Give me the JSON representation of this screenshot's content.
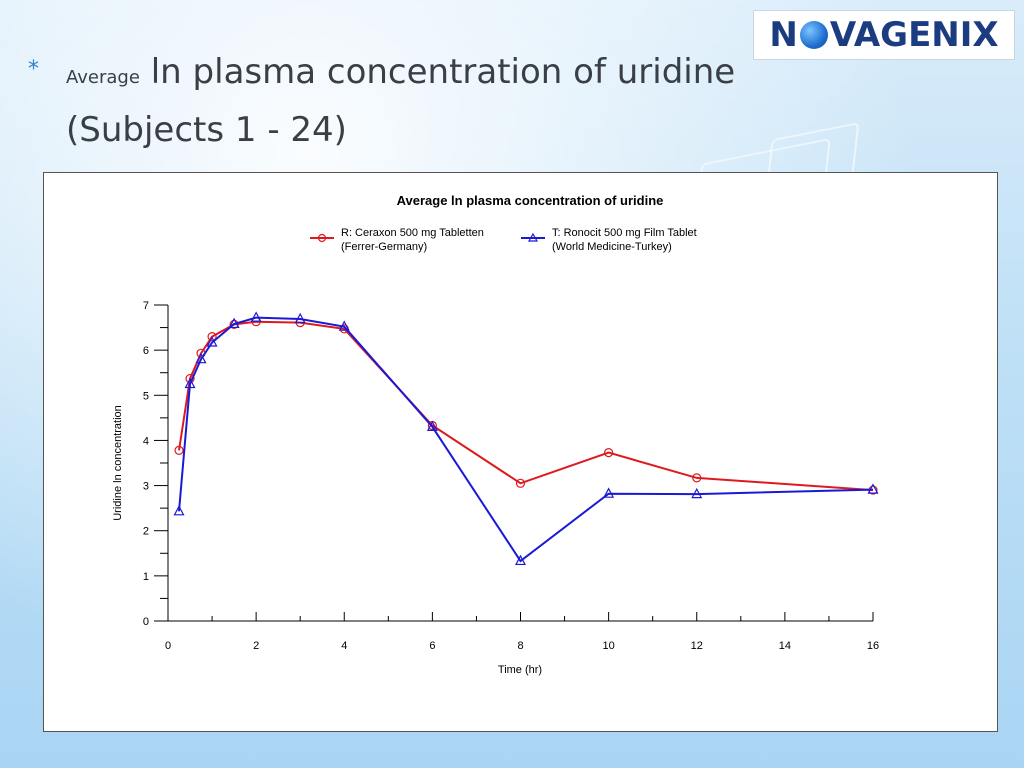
{
  "slide": {
    "bullet": "*",
    "title_small": "Average",
    "title_main": "ln plasma concentration of uridine",
    "title_line2": "(Subjects 1 - 24)"
  },
  "logo": {
    "text_before": "N",
    "text_after": "VAGENIX",
    "colors": {
      "navy": "#1c3c82",
      "blue": "#1f6fd1"
    }
  },
  "chart_data": {
    "type": "line",
    "title": "Average ln plasma concentration of uridine",
    "xlabel": "Time (hr)",
    "ylabel": "Uridine ln concentration",
    "xlim": [
      0,
      16
    ],
    "ylim": [
      0,
      7
    ],
    "xticks": [
      0,
      2,
      4,
      6,
      8,
      10,
      12,
      14,
      16
    ],
    "yticks": [
      0,
      1,
      2,
      3,
      4,
      5,
      6,
      7
    ],
    "grid": false,
    "legend_position": "top-center",
    "series": [
      {
        "name": "R: Ceraxon 500 mg Tabletten (Ferrer-Germany)",
        "legend_lines": [
          "R: Ceraxon 500 mg Tabletten",
          "(Ferrer-Germany)"
        ],
        "color": "#e0191f",
        "marker": "circle",
        "x": [
          0.25,
          0.5,
          0.75,
          1,
          1.5,
          2,
          3,
          4,
          6,
          8,
          10,
          12,
          16
        ],
        "y": [
          3.78,
          5.37,
          5.93,
          6.3,
          6.57,
          6.63,
          6.61,
          6.47,
          4.33,
          3.05,
          3.73,
          3.17,
          2.9
        ]
      },
      {
        "name": "T: Ronocit 500 mg Film Tablet (World Medicine-Turkey)",
        "legend_lines": [
          "T: Ronocit 500 mg Film Tablet",
          "(World Medicine-Turkey)"
        ],
        "color": "#1a1ad6",
        "marker": "triangle",
        "x": [
          0.25,
          0.5,
          0.75,
          1,
          1.5,
          2,
          3,
          4,
          6,
          8,
          10,
          12,
          16
        ],
        "y": [
          2.43,
          5.25,
          5.8,
          6.17,
          6.58,
          6.72,
          6.69,
          6.52,
          4.3,
          1.33,
          2.82,
          2.81,
          2.91
        ]
      }
    ]
  }
}
